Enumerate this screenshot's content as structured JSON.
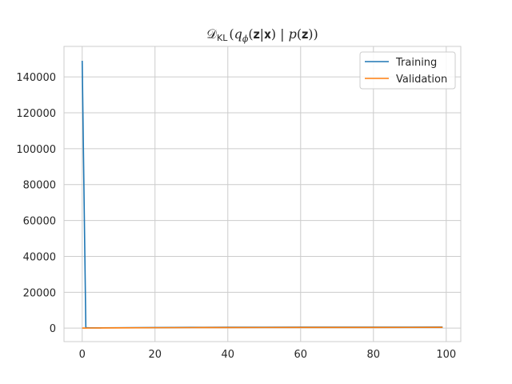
{
  "chart_data": {
    "type": "line",
    "title": "𝒟KL(qϕ(𝐳|𝐱) | p(𝐳))",
    "title_parts": {
      "d": "𝒟",
      "sub": "KL",
      "open": "(",
      "q": "q",
      "phi": "ϕ",
      "args": "(𝐳|𝐱) | ",
      "p": "p",
      "pz": "(𝐳)",
      "close": ")"
    },
    "xlabel": "",
    "ylabel": "",
    "xlim": [
      -5,
      104
    ],
    "ylim": [
      -7500,
      157000
    ],
    "xticks": [
      0,
      20,
      40,
      60,
      80,
      100
    ],
    "yticks": [
      0,
      20000,
      40000,
      60000,
      80000,
      100000,
      120000,
      140000
    ],
    "grid": true,
    "legend_position": "top-right",
    "series": [
      {
        "name": "Training",
        "color": "#1f77b4",
        "x": [
          0,
          1,
          2,
          5,
          10,
          20,
          30,
          40,
          50,
          60,
          70,
          80,
          90,
          99
        ],
        "y": [
          149000,
          300,
          150,
          180,
          250,
          350,
          420,
          480,
          520,
          540,
          560,
          570,
          580,
          590
        ]
      },
      {
        "name": "Validation",
        "color": "#ff7f0e",
        "x": [
          0,
          1,
          2,
          5,
          10,
          20,
          30,
          40,
          50,
          60,
          70,
          80,
          90,
          99
        ],
        "y": [
          50,
          60,
          80,
          120,
          180,
          250,
          300,
          330,
          360,
          380,
          390,
          400,
          410,
          420
        ]
      }
    ]
  }
}
